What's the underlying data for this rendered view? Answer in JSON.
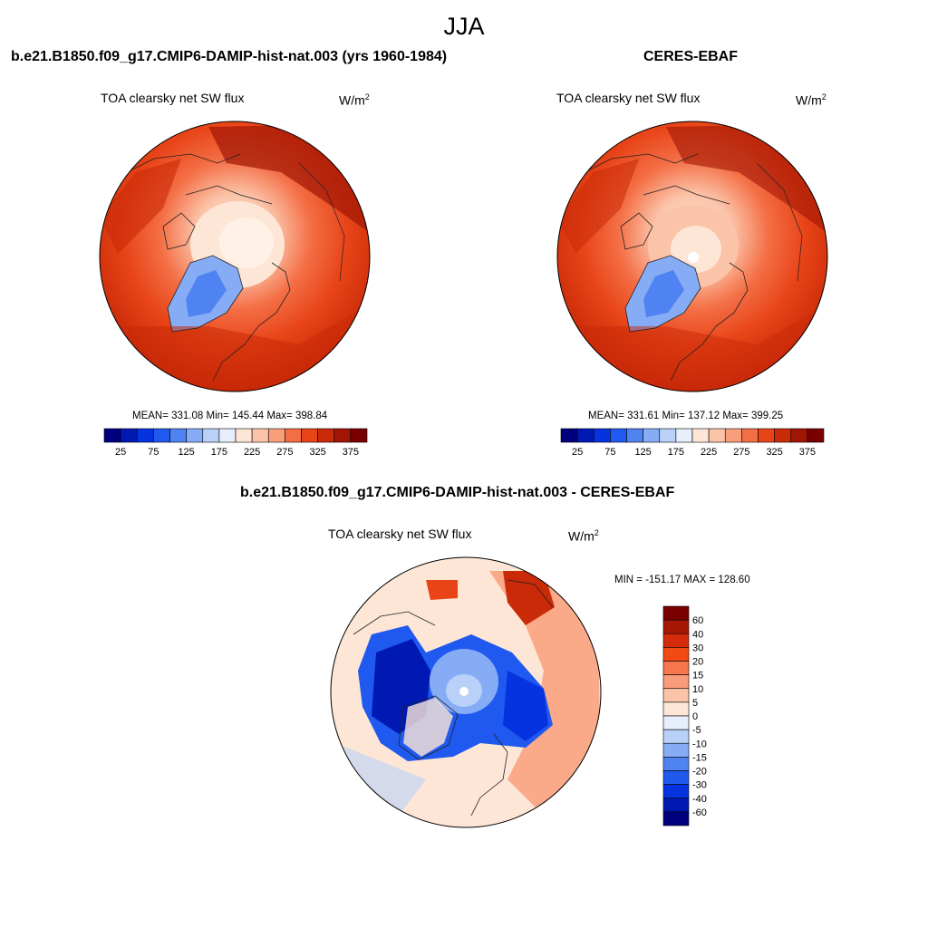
{
  "figure": {
    "season": "JJA",
    "left_panel": {
      "title": "b.e21.B1850.f09_g17.CMIP6-DAMIP-hist-nat.003 (yrs 1960-1984)",
      "variable": "TOA clearsky net SW flux",
      "units_base": "W/m",
      "units_exp": "2",
      "stats": "MEAN= 331.08  Min= 145.44  Max= 398.84"
    },
    "right_panel": {
      "title": "CERES-EBAF",
      "variable": "TOA clearsky net SW flux",
      "units_base": "W/m",
      "units_exp": "2",
      "stats": "MEAN= 331.61  Min= 137.12  Max= 399.25"
    },
    "diff_panel": {
      "title": "b.e21.B1850.f09_g17.CMIP6-DAMIP-hist-nat.003 - CERES-EBAF",
      "variable": "TOA clearsky net SW flux",
      "units_base": "W/m",
      "units_exp": "2",
      "stats": "MIN = -151.17 MAX = 128.60"
    },
    "abs_colorbar": {
      "colors": [
        "#00007f",
        "#0019b3",
        "#0633e0",
        "#2059f0",
        "#4f83f2",
        "#86acf5",
        "#b9d0f8",
        "#e6effb",
        "#fde6d6",
        "#fbc3a8",
        "#f99e7b",
        "#f46e45",
        "#e84418",
        "#c92a08",
        "#a01504",
        "#7a0000"
      ],
      "labels": [
        "25",
        "75",
        "125",
        "175",
        "225",
        "275",
        "325",
        "375"
      ]
    },
    "diff_colorbar": {
      "colors": [
        "#7a0000",
        "#a81606",
        "#d42c0a",
        "#f24a12",
        "#f7764b",
        "#f99c7b",
        "#fbc4a8",
        "#fde6d6",
        "#e6effb",
        "#b9d0f8",
        "#86acf5",
        "#4f83f2",
        "#2059f0",
        "#0633e0",
        "#0019b3",
        "#00007f"
      ],
      "labels": [
        "60",
        "40",
        "30",
        "20",
        "15",
        "10",
        "5",
        "0",
        "-5",
        "-10",
        "-15",
        "-20",
        "-30",
        "-40",
        "-60"
      ]
    }
  }
}
